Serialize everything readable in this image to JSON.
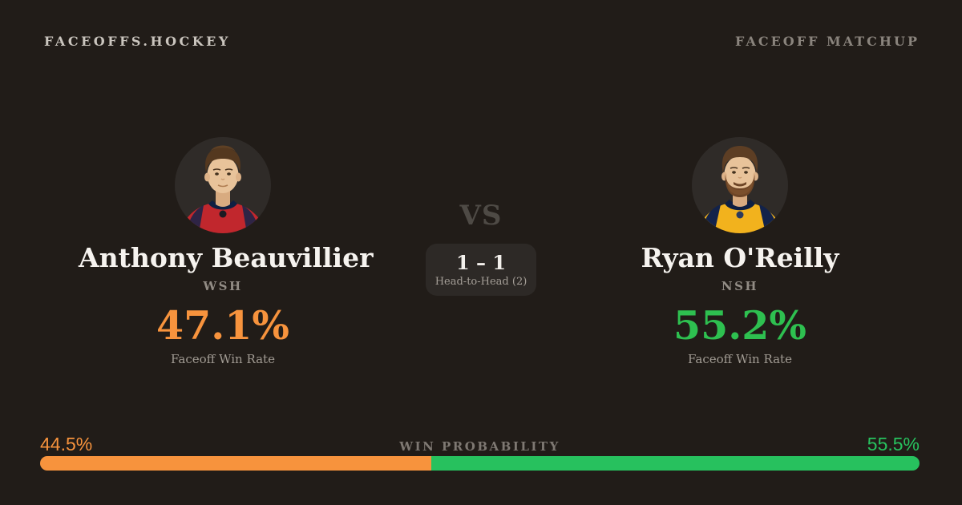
{
  "brand": "FACEOFFS.HOCKEY",
  "page_label": "FACEOFF MATCHUP",
  "vs_label": "VS",
  "head_to_head": {
    "score": "1 – 1",
    "label": "Head-to-Head (2)"
  },
  "players": {
    "left": {
      "name": "Anthony Beauvillier",
      "team": "WSH",
      "win_rate": "47.1%",
      "win_rate_label": "Faceoff Win Rate",
      "accent_color": "#f7933d",
      "avatar": "player-headshot-red-jersey"
    },
    "right": {
      "name": "Ryan O'Reilly",
      "team": "NSH",
      "win_rate": "55.2%",
      "win_rate_label": "Faceoff Win Rate",
      "accent_color": "#2ec050",
      "avatar": "player-headshot-gold-jersey"
    }
  },
  "win_probability": {
    "title": "WIN PROBABILITY",
    "left_pct_label": "44.5%",
    "right_pct_label": "55.5%",
    "left_value": 44.5,
    "right_value": 55.5,
    "left_color": "#f7933d",
    "right_color": "#27c15e"
  },
  "colors": {
    "background": "#211c18",
    "avatar_bg": "#2f2b28",
    "name_text": "#f6f3ef",
    "muted_text": "#928c85"
  }
}
